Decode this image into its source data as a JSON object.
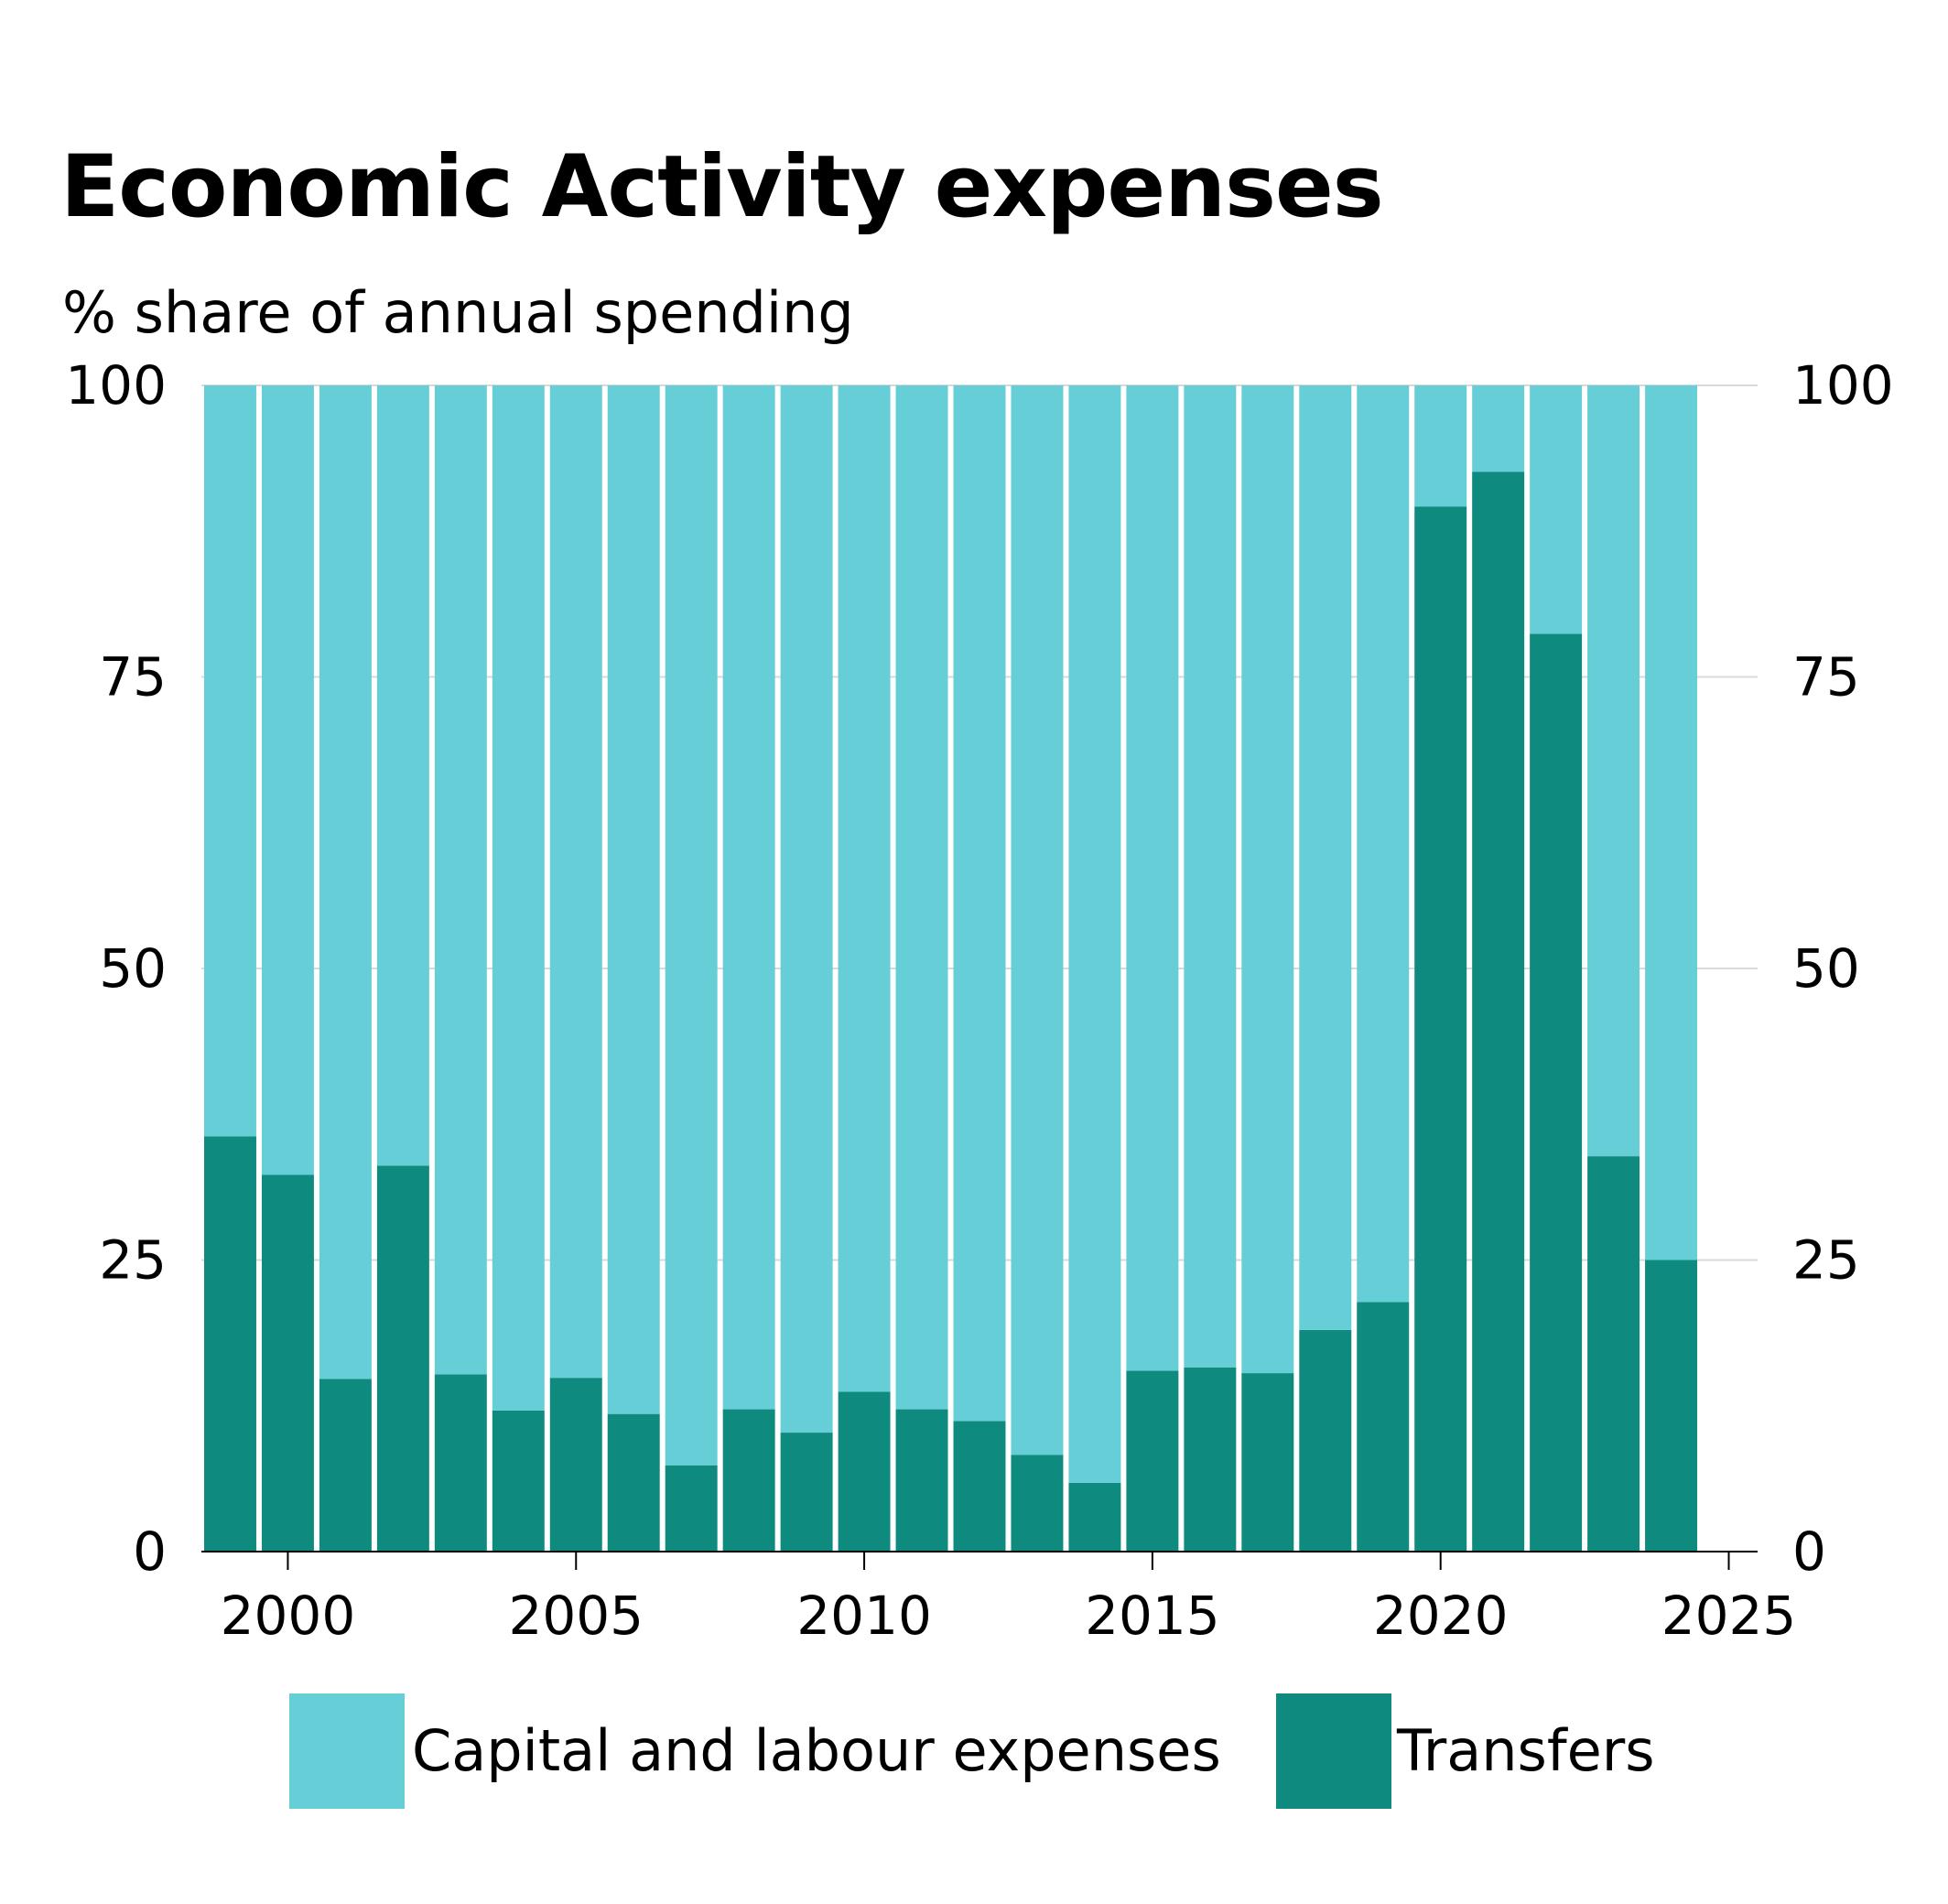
{
  "chart_data": {
    "type": "bar",
    "stacked": true,
    "title": "Economic Activity expenses",
    "subtitle": "% share of annual spending",
    "xlabel": "",
    "ylabel": "",
    "x": [
      1999,
      2000,
      2001,
      2002,
      2003,
      2004,
      2005,
      2006,
      2007,
      2008,
      2009,
      2010,
      2011,
      2012,
      2013,
      2014,
      2015,
      2016,
      2017,
      2018,
      2019,
      2020,
      2021,
      2022,
      2023,
      2024
    ],
    "series": [
      {
        "name": "Transfers",
        "color": "#0e8a7e",
        "values": [
          35.6,
          32.3,
          14.8,
          33.1,
          15.2,
          12.1,
          14.9,
          11.8,
          7.4,
          12.2,
          10.2,
          13.7,
          12.2,
          11.2,
          8.3,
          5.9,
          15.5,
          15.8,
          15.3,
          19.0,
          21.4,
          89.6,
          92.6,
          78.7,
          33.9,
          25.0
        ]
      },
      {
        "name": "Capital and labour expenses",
        "color": "#66ced6",
        "values": [
          64.4,
          67.7,
          85.2,
          66.9,
          84.8,
          87.9,
          85.1,
          88.2,
          92.6,
          87.8,
          89.8,
          86.3,
          87.8,
          88.8,
          91.7,
          94.1,
          84.5,
          84.2,
          84.7,
          81.0,
          78.6,
          10.4,
          7.4,
          21.3,
          66.1,
          75.0
        ]
      }
    ],
    "ylim": [
      0,
      100
    ],
    "yticks": [
      0,
      25,
      50,
      75,
      100
    ],
    "xlim": [
      1998.5,
      2025.5
    ],
    "xticks": [
      2000,
      2005,
      2010,
      2015,
      2020,
      2025
    ],
    "grid": "horizontal",
    "legend": [
      {
        "label": "Capital and labour expenses",
        "color": "#66ced6"
      },
      {
        "label": "Transfers",
        "color": "#0e8a7e"
      }
    ],
    "legend_position": "bottom"
  }
}
